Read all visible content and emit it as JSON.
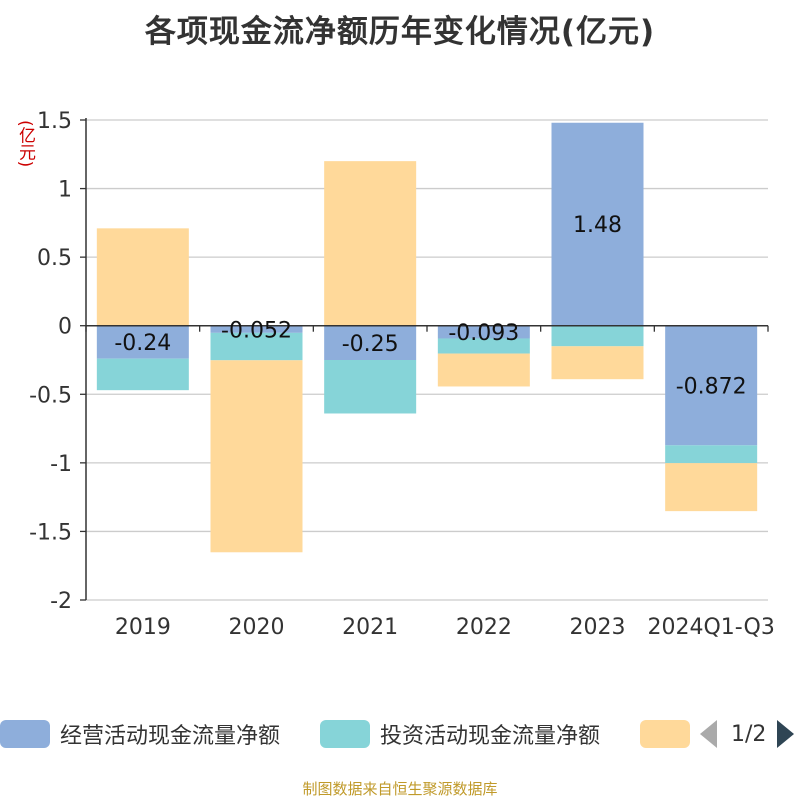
{
  "title": "各项现金流净额历年变化情况(亿元)",
  "unit_label": "(亿元)",
  "source": "制图数据来自恒生聚源数据库",
  "legend": {
    "items": [
      {
        "label": "经营活动现金流量净额",
        "color": "#8eaedb"
      },
      {
        "label": "投资活动现金流量净额",
        "color": "#86d4d8"
      },
      {
        "label": "",
        "color": "#ffd99a"
      }
    ],
    "page_text": "1/2"
  },
  "chart_data": {
    "type": "bar",
    "stacked": true,
    "title": "各项现金流净额历年变化情况(亿元)",
    "ylabel": "(亿元)",
    "categories": [
      "2019",
      "2020",
      "2021",
      "2022",
      "2023",
      "2024Q1-Q3"
    ],
    "ylim": [
      -2,
      1.5
    ],
    "yticks": [
      1.5,
      1,
      0.5,
      0,
      -0.5,
      -1,
      -1.5,
      -2
    ],
    "ytick_labels": [
      "1.5",
      "1",
      "0.5",
      "0",
      "-0.5",
      "-1",
      "-1.5",
      "-2"
    ],
    "grid": true,
    "series": [
      {
        "name": "经营活动现金流量净额",
        "color": "#8eaedb",
        "values": [
          -0.24,
          -0.052,
          -0.25,
          -0.093,
          1.48,
          -0.872
        ],
        "labels": [
          "-0.24",
          "-0.052",
          "-0.25",
          "-0.093",
          "1.48",
          "-0.872"
        ]
      },
      {
        "name": "投资活动现金流量净额",
        "color": "#86d4d8",
        "values": [
          -0.23,
          -0.2,
          -0.39,
          -0.11,
          -0.15,
          -0.13
        ]
      },
      {
        "name": "",
        "color": "#ffd99a",
        "values": [
          0.71,
          -1.4,
          1.2,
          -0.24,
          -0.24,
          -0.35
        ]
      }
    ]
  }
}
